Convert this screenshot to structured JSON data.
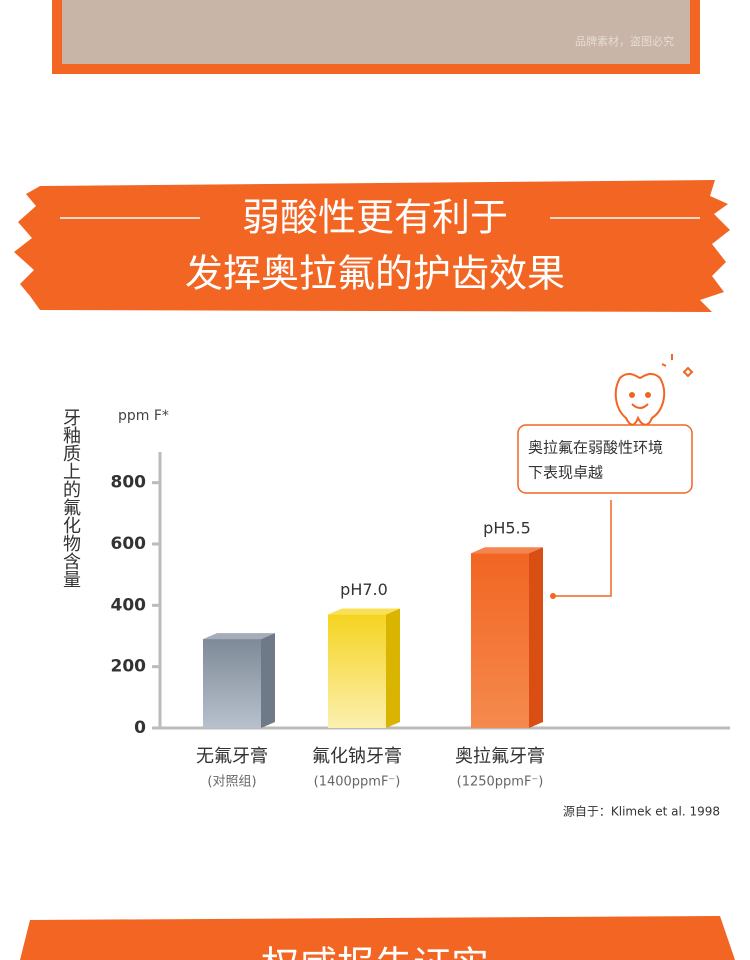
{
  "watermark": "品牌素材，盗图必究",
  "banner": {
    "lines": [
      "弱酸性更有利于",
      "发挥奥拉氟的护齿效果"
    ]
  },
  "chart_data": {
    "type": "bar",
    "y_label": "牙釉质上的氟化物含量",
    "unit": "ppm F*",
    "categories": [
      "无氟牙膏",
      "氟化钠牙膏",
      "奥拉氟牙膏"
    ],
    "category_notes": [
      "(对照组)",
      "(1400ppmF⁻)",
      "(1250ppmF⁻)"
    ],
    "values": [
      290,
      370,
      570
    ],
    "bar_notes": [
      null,
      "pH7.0",
      "pH5.5"
    ],
    "colors": [
      "#8e99a8",
      "#f6d92c",
      "#f26522"
    ],
    "side_colors": [
      "#6f7a88",
      "#d9b400",
      "#d94e12"
    ],
    "ylim": [
      0,
      900
    ],
    "yticks": [
      0,
      200,
      400,
      600,
      800
    ],
    "callout": [
      "奥拉氟在弱酸性环境",
      "下表现卓越"
    ],
    "source": "源自于：Klimek et al. 1998"
  },
  "next_banner": "权威报告证实"
}
